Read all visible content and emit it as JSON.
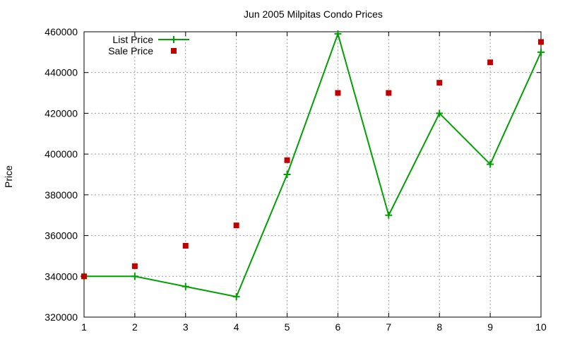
{
  "chart_data": {
    "type": "line",
    "title": "Jun 2005 Milpitas Condo Prices",
    "xlabel": "",
    "ylabel": "Price",
    "x": [
      1,
      2,
      3,
      4,
      5,
      6,
      7,
      8,
      9,
      10
    ],
    "xlim": [
      1,
      10
    ],
    "ylim": [
      320000,
      460000
    ],
    "xticks": [
      1,
      2,
      3,
      4,
      5,
      6,
      7,
      8,
      9,
      10
    ],
    "yticks": [
      320000,
      340000,
      360000,
      380000,
      400000,
      420000,
      440000,
      460000
    ],
    "grid": true,
    "legend_position": "top-left",
    "series": [
      {
        "name": "List Price",
        "style": "line-with-plus-markers",
        "color": "#00a000",
        "values": [
          340000,
          340000,
          335000,
          330000,
          390000,
          459000,
          370000,
          420000,
          395000,
          450000
        ]
      },
      {
        "name": "Sale Price",
        "style": "square-markers",
        "color": "#c00000",
        "values": [
          340000,
          345000,
          355000,
          365000,
          397000,
          430000,
          430000,
          435000,
          445000,
          455000
        ]
      }
    ]
  }
}
